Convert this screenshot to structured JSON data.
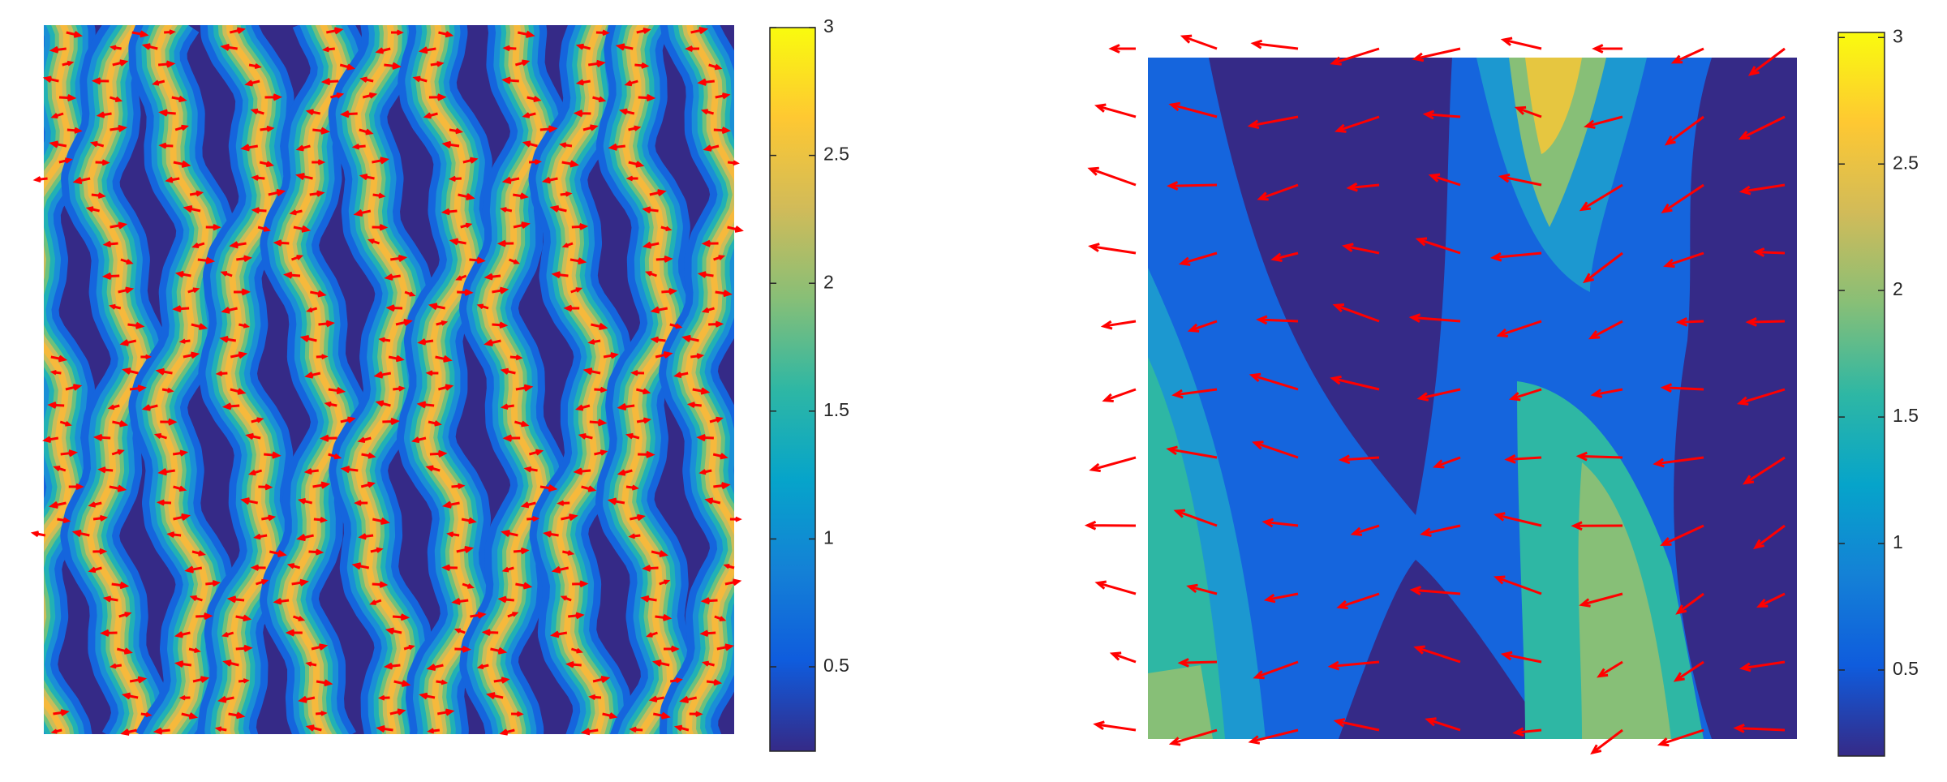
{
  "chart_data": [
    {
      "type": "contour",
      "clim": [
        0.17,
        3
      ],
      "cticks": [
        0.5,
        1,
        1.5,
        2,
        2.5,
        3
      ],
      "colors": [
        "#352a87",
        "#0f5cdd",
        "#1481d6",
        "#06a4ca",
        "#2eb7a4",
        "#87bf77",
        "#d1bb59",
        "#fec832",
        "#f9fb0e"
      ]
    },
    {
      "type": "contour",
      "clim": [
        0.16,
        3.02
      ],
      "cticks": [
        0.5,
        1,
        1.5,
        2,
        2.5,
        3
      ],
      "colors": [
        "#352a87",
        "#0f5cdd",
        "#1481d6",
        "#06a4ca",
        "#2eb7a4",
        "#87bf77",
        "#d1bb59",
        "#fec832",
        "#f9fb0e"
      ]
    }
  ]
}
